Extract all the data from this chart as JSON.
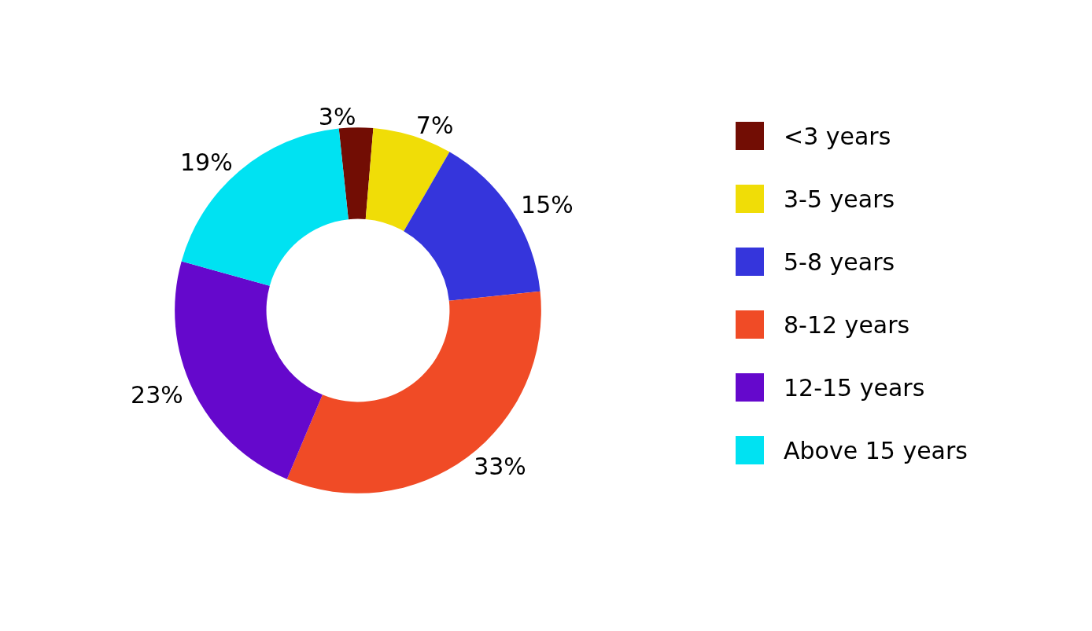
{
  "chart_data": {
    "type": "donut",
    "categories": [
      "<3 years",
      "3-5 years",
      "5-8 years",
      "8-12 years",
      "12-15 years",
      "Above 15 years"
    ],
    "values": [
      3,
      7,
      15,
      33,
      23,
      19
    ],
    "value_labels": [
      "3%",
      "7%",
      "15%",
      "33%",
      "23%",
      "19%"
    ],
    "colors": [
      "#720d04",
      "#f0dd07",
      "#3535dc",
      "#f04b26",
      "#6508cc",
      "#00e2f2"
    ],
    "legend": "right"
  }
}
